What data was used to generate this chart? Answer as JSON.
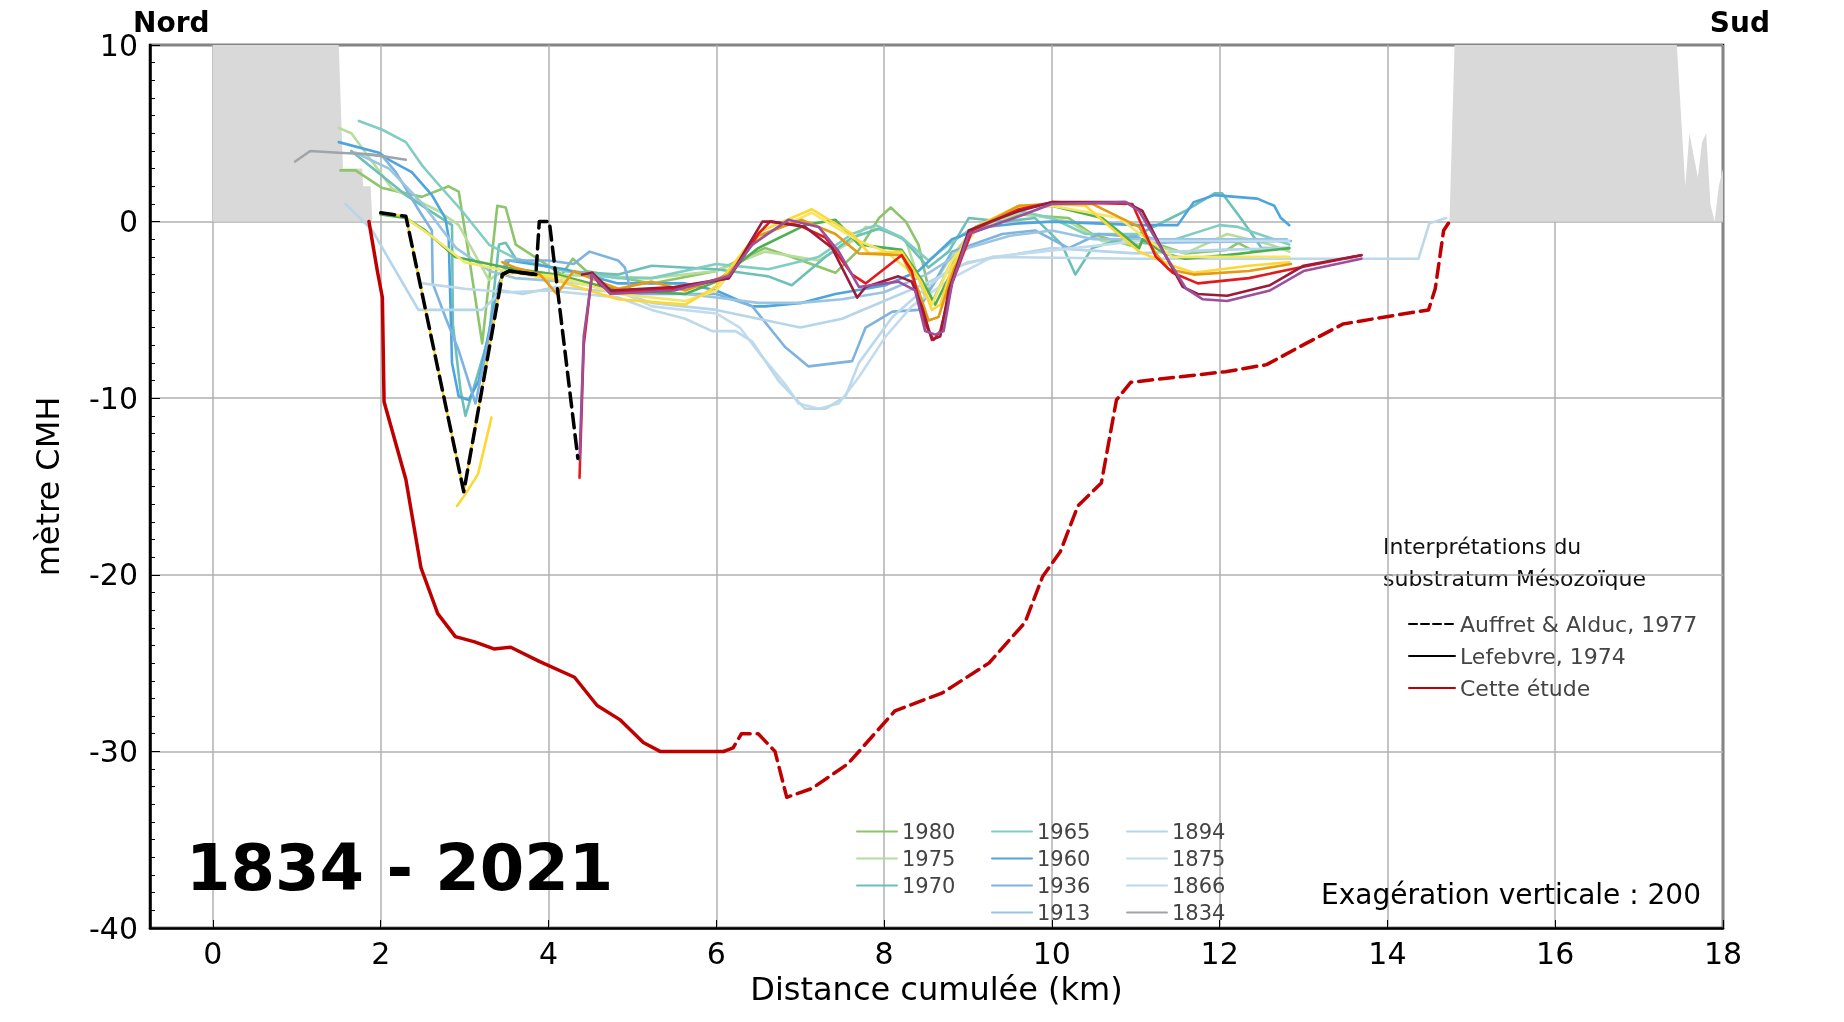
{
  "chart_data": {
    "type": "line",
    "xlabel": "Distance cumulée (km)",
    "ylabel": "mètre CMH",
    "legend_title": "Interprétations du substratum Mésozoïque",
    "annotations": [
      "Nord",
      "Sud",
      "1834 - 2021",
      "Exagération verticale : 200"
    ],
    "xlim": [
      -0.75,
      18
    ],
    "xticks": [
      0,
      2,
      4,
      6,
      8,
      10,
      12,
      14,
      16,
      18
    ],
    "ylim": [
      -40,
      10
    ],
    "yticks": [
      -40,
      -30,
      -20,
      -10,
      0,
      10
    ],
    "grid": true,
    "legend": "bottom right",
    "marker": "none",
    "series": [
      {
        "type": "area",
        "color": "#d9d9d9",
        "x": [
          0,
          1.5,
          1.55,
          1.78,
          1.79,
          1.88,
          1.9
        ],
        "values": [
          10,
          10,
          3,
          3,
          2,
          2,
          0
        ]
      },
      {
        "type": "area",
        "color": "#d9d9d9",
        "x": [
          14.74,
          14.8,
          17.45,
          17.55,
          17.6,
          17.7,
          17.75,
          17.8,
          17.85,
          17.9,
          17.95,
          18.0
        ],
        "values": [
          0,
          10,
          10,
          2,
          5,
          2.5,
          4.5,
          5,
          1,
          0,
          2,
          3
        ]
      },
      {
        "name": "1980",
        "color": "#8dc56b",
        "x": [
          1.52,
          1.7,
          2.02,
          2.49,
          2.81,
          2.93,
          3.03,
          3.21,
          3.39,
          3.49,
          3.61,
          4.16,
          4.29,
          4.45,
          5.23,
          6.0,
          6.58,
          6.9,
          7.42,
          7.7,
          7.94,
          8.08,
          8.26,
          8.41,
          8.57,
          8.77,
          9.05,
          9.61,
          10.2,
          10.48,
          11.04,
          11.08,
          11.59,
          12.09,
          12.22,
          12.38,
          12.83
        ],
        "values": [
          2.9,
          2.9,
          1.9,
          1.4,
          2.0,
          1.7,
          -1.3,
          -6.9,
          0.9,
          0.8,
          -1.3,
          -3.0,
          -2.1,
          -2.8,
          -3.5,
          -2.8,
          -1.5,
          -2.0,
          -2.9,
          -1.6,
          0.2,
          0.8,
          0.0,
          -1.3,
          -4.6,
          -2.6,
          -0.5,
          0.4,
          0.2,
          -0.7,
          -1.5,
          -1.0,
          -1.8,
          -1.6,
          -1.2,
          -1.6,
          -1.5
        ]
      },
      {
        "name": "1975",
        "color": "#b7dc9c",
        "x": [
          1.5,
          1.65,
          2.13,
          2.69,
          2.93,
          3.29,
          3.49,
          4.09,
          5.23,
          6.0,
          6.58,
          7.22,
          7.62,
          7.78,
          8.02,
          8.26,
          8.49,
          8.77,
          9.05,
          9.61,
          10.2,
          10.6,
          11.04,
          11.08,
          11.59,
          12.09,
          12.6,
          12.83
        ],
        "values": [
          5.3,
          5.0,
          1.9,
          0.6,
          -0.2,
          -3.3,
          -2.7,
          -3.0,
          -3.2,
          -2.8,
          -1.7,
          -2.2,
          -1.1,
          -0.3,
          -0.5,
          -1.1,
          -4.3,
          -2.2,
          -0.5,
          0.5,
          0.0,
          -1.1,
          -1.3,
          -1.2,
          -1.8,
          -0.7,
          -1.3,
          -1.7
        ]
      },
      {
        "name": "1970",
        "color": "#6cc0b8",
        "x": [
          1.65,
          2.3,
          2.85,
          2.86,
          2.95,
          3.01,
          3.29,
          3.41,
          3.49,
          3.61,
          4.2,
          4.83,
          5.23,
          6.0,
          6.62,
          6.9,
          7.3,
          7.62,
          7.94,
          8.21,
          8.53,
          8.77,
          9.01,
          9.41,
          9.8,
          10.12,
          10.28,
          10.48,
          11.04,
          11.59,
          11.94,
          12.03,
          12.25,
          12.5,
          12.83
        ],
        "values": [
          4.0,
          1.5,
          -0.2,
          -5.8,
          -9.5,
          -11.0,
          -6.5,
          -1.3,
          -1.2,
          -2.1,
          -2.8,
          -3.0,
          -2.5,
          -2.7,
          -3.1,
          -3.6,
          -2.0,
          -0.9,
          -0.4,
          -0.9,
          -2.6,
          -1.7,
          0.2,
          0.0,
          0.2,
          -1.3,
          -3.0,
          -1.5,
          -0.7,
          0.6,
          1.6,
          1.6,
          0.2,
          -1.5,
          -1.5
        ]
      },
      {
        "name": "1965",
        "color": "#80cdc1",
        "x": [
          1.74,
          2.02,
          2.3,
          2.49,
          2.69,
          2.97,
          3.29,
          3.61,
          4.2,
          4.83,
          5.23,
          6.0,
          6.62,
          7.22,
          7.62,
          7.9,
          8.21,
          8.53,
          8.77,
          9.01,
          9.61,
          10.0,
          10.4,
          11.04,
          11.34,
          12.0,
          12.22,
          12.83
        ],
        "values": [
          5.7,
          5.2,
          4.5,
          3.2,
          2.1,
          0.6,
          -1.3,
          -2.1,
          -2.8,
          -3.2,
          -3.2,
          -2.4,
          -2.7,
          -2.0,
          -0.7,
          -0.2,
          -0.9,
          -2.2,
          -1.3,
          -0.5,
          0.6,
          0.2,
          -0.7,
          -0.7,
          -1.2,
          -0.2,
          -0.3,
          -1.3
        ]
      },
      {
        "name": "1960",
        "color": "#4ea5dd",
        "x": [
          1.5,
          1.98,
          2.1,
          2.37,
          2.61,
          2.77,
          2.81,
          2.85,
          2.93,
          3.05,
          3.17,
          3.41,
          3.53,
          4.2,
          4.83,
          5.63,
          6.0,
          6.43,
          6.58,
          7.02,
          7.42,
          8.02,
          8.41,
          8.81,
          9.21,
          9.61,
          10.0,
          11.04,
          11.08,
          11.5,
          11.69,
          11.94,
          12.45,
          12.65,
          12.73,
          12.83
        ],
        "values": [
          4.5,
          3.9,
          3.5,
          2.8,
          1.5,
          0.2,
          -0.9,
          -8.0,
          -9.9,
          -10.1,
          -9.0,
          -3.5,
          -2.2,
          -2.7,
          -3.5,
          -3.5,
          -3.9,
          -4.8,
          -4.8,
          -4.6,
          -4.1,
          -3.6,
          -2.8,
          -1.0,
          -0.3,
          -0.1,
          0.0,
          -0.2,
          -0.2,
          -0.2,
          1.1,
          1.5,
          1.3,
          0.9,
          0.2,
          -0.2
        ]
      },
      {
        "name": "1936",
        "color": "#7fb3df",
        "x": [
          1.66,
          2.02,
          2.18,
          2.46,
          2.61,
          2.62,
          2.77,
          2.93,
          3.13,
          3.33,
          3.49,
          4.0,
          4.3,
          4.49,
          4.83,
          4.91,
          4.99,
          6.0,
          6.43,
          6.82,
          7.1,
          7.62,
          7.78,
          8.1,
          8.41,
          8.81,
          9.41,
          9.8,
          10.2,
          10.56,
          11.04,
          11.08,
          12.85
        ],
        "values": [
          3.9,
          3.7,
          2.8,
          0.6,
          -0.5,
          -3.5,
          -5.4,
          -7.3,
          -10.3,
          -5.6,
          -2.2,
          -2.2,
          -2.4,
          -1.7,
          -2.2,
          -2.6,
          -4.1,
          -4.1,
          -4.8,
          -7.1,
          -8.2,
          -7.9,
          -6.0,
          -5.1,
          -5.0,
          -1.7,
          -0.7,
          -0.5,
          -1.5,
          -0.7,
          -0.9,
          -1.2,
          -1.1
        ]
      },
      {
        "name": "1913",
        "color": "#99c5e3",
        "x": [
          1.7,
          2.1,
          2.5,
          2.9,
          3.3,
          3.6,
          4.2,
          4.83,
          5.23,
          5.63,
          6.0,
          6.5,
          7.0,
          7.5,
          8.0,
          8.5,
          9.0,
          9.5,
          10.0,
          10.5,
          11.0,
          12.0,
          12.8
        ],
        "values": [
          3.9,
          3.0,
          1.0,
          -1.5,
          -2.8,
          -3.2,
          -3.4,
          -3.8,
          -4.0,
          -4.1,
          -4.3,
          -4.6,
          -4.6,
          -4.4,
          -4.0,
          -3.0,
          -1.5,
          -0.8,
          -0.5,
          -1.0,
          -1.0,
          -1.0,
          -1.0
        ]
      },
      {
        "name": "1894",
        "color": "#b5d5ea",
        "x": [
          1.58,
          1.9,
          2.13,
          2.45,
          3.21,
          3.45,
          3.69,
          4.09,
          4.83,
          5.23,
          6.0,
          6.5,
          7.0,
          7.5,
          8.0,
          8.5,
          9.0,
          10.0,
          11.0,
          12.0,
          12.8
        ],
        "values": [
          1.0,
          -0.5,
          -2.4,
          -5.0,
          -5.0,
          -3.9,
          -4.1,
          -3.7,
          -4.0,
          -4.6,
          -5.0,
          -5.5,
          -6.0,
          -5.5,
          -4.5,
          -3.5,
          -2.3,
          -1.5,
          -1.8,
          -1.6,
          -1.5
        ]
      },
      {
        "name": "1875",
        "color": "#c2dcee",
        "x": [
          4.0,
          4.83,
          5.23,
          6.0,
          6.28,
          6.52,
          6.82,
          6.98,
          7.22,
          7.46,
          7.7,
          8.02,
          8.33,
          8.81,
          9.29,
          11.04,
          12.0,
          12.83
        ],
        "values": [
          -3.2,
          -3.9,
          -4.8,
          -5.2,
          -6.0,
          -7.5,
          -9.2,
          -10.3,
          -10.6,
          -10.3,
          -8.8,
          -6.5,
          -4.8,
          -3.2,
          -2.0,
          -1.1,
          -1.1,
          -1.1
        ]
      },
      {
        "name": "1866",
        "color": "#bcd9ea",
        "x": [
          2.5,
          3.0,
          3.5,
          4.0,
          4.83,
          5.23,
          5.63,
          5.95,
          6.23,
          6.43,
          6.74,
          7.06,
          7.3,
          7.54,
          7.7,
          8.1,
          8.41,
          8.81,
          9.29,
          11.04,
          12.0,
          13.0,
          14.37,
          14.5,
          14.7
        ],
        "values": [
          -3.5,
          -3.8,
          -4.0,
          -3.9,
          -4.3,
          -5.0,
          -5.5,
          -6.2,
          -6.2,
          -6.8,
          -9.0,
          -10.6,
          -10.6,
          -9.9,
          -8.0,
          -5.4,
          -4.1,
          -2.6,
          -2.0,
          -2.1,
          -2.1,
          -2.1,
          -2.1,
          -0.1,
          0.2
        ]
      },
      {
        "name": "1834",
        "color": "#a0a4a8",
        "x": [
          0.98,
          1.16,
          1.5,
          1.9,
          2.3
        ],
        "values": [
          3.4,
          4.0,
          3.9,
          3.8,
          3.5
        ]
      },
      {
        "color": "#4caf50",
        "x": [
          2.0,
          2.3,
          2.53,
          2.89,
          3.49,
          4.09,
          4.83,
          5.63,
          6.0,
          6.5,
          7.06,
          7.42,
          7.7,
          8.21,
          8.45,
          8.61,
          8.81,
          9.09,
          9.61,
          10.0,
          10.6,
          11.04,
          11.08,
          11.34,
          11.59,
          12.09,
          12.83
        ],
        "values": [
          0.4,
          0.2,
          -0.5,
          -2.0,
          -2.6,
          -3.0,
          -3.9,
          -4.1,
          -3.4,
          -1.5,
          -0.2,
          0.1,
          -1.3,
          -1.6,
          -3.3,
          -4.7,
          -2.8,
          -0.3,
          0.8,
          0.9,
          0.2,
          -1.5,
          -1.0,
          -1.8,
          -2.1,
          -1.9,
          -1.5
        ]
      },
      {
        "color": "#f5e663",
        "x": [
          2.3,
          2.6,
          3.0,
          3.5,
          4.1,
          4.83,
          5.63,
          6.0,
          6.5,
          7.14,
          7.7,
          8.02,
          8.41,
          8.57,
          8.81,
          9.13,
          9.61,
          10.0,
          10.8,
          11.08,
          11.44,
          12.0,
          12.83
        ],
        "values": [
          0.2,
          -0.8,
          -2.3,
          -2.8,
          -3.1,
          -4.1,
          -4.5,
          -3.9,
          -0.9,
          0.5,
          -1.1,
          -1.7,
          -3.2,
          -4.7,
          -2.2,
          -0.3,
          0.8,
          0.9,
          0.2,
          -0.8,
          -2.0,
          -2.0,
          -2.0
        ]
      },
      {
        "color": "#fdd835",
        "x": [
          2.91,
          3.0,
          3.16,
          3.32
        ],
        "values": [
          -16.1,
          -15.5,
          -14.3,
          -11.1
        ]
      },
      {
        "color": "#fdd835",
        "x": [
          2.0,
          2.3,
          2.99,
          3.45,
          3.6,
          4.0,
          4.83,
          5.63,
          5.99,
          6.5,
          7.14,
          7.62,
          7.82,
          8.21,
          8.45,
          8.57,
          8.67,
          8.81,
          9.09,
          9.61,
          10.0,
          10.4,
          11.04,
          11.44,
          11.69,
          12.35,
          12.83
        ],
        "values": [
          0.5,
          0.3,
          -15.3,
          -3.0,
          -2.9,
          -3.2,
          -4.4,
          -4.7,
          -3.7,
          -0.6,
          0.7,
          -0.7,
          -1.8,
          -1.7,
          -3.5,
          -5.0,
          -4.7,
          -2.6,
          -0.3,
          0.9,
          1.0,
          0.9,
          -1.7,
          -2.5,
          -2.9,
          -2.5,
          -2.3
        ]
      },
      {
        "color": "#e69a12",
        "x": [
          3.45,
          3.6,
          3.9,
          4.1,
          4.3,
          4.5,
          4.83,
          5.23,
          5.63,
          6.15,
          6.5,
          7.02,
          7.42,
          7.7,
          8.21,
          8.41,
          8.53,
          8.65,
          8.81,
          9.05,
          9.61,
          10.0,
          10.48,
          11.04,
          11.24,
          11.39,
          11.69,
          12.35,
          12.85
        ],
        "values": [
          -2.3,
          -2.6,
          -3.0,
          -4.1,
          -2.8,
          -3.2,
          -3.8,
          -3.4,
          -3.9,
          -3.0,
          -0.8,
          0.1,
          -0.7,
          -1.8,
          -1.9,
          -3.9,
          -5.6,
          -5.4,
          -3.0,
          -0.5,
          0.9,
          1.0,
          1.0,
          -0.3,
          -1.8,
          -2.7,
          -3.0,
          -2.8,
          -2.4
        ]
      },
      {
        "color": "#e31a1c",
        "x": [
          4.37,
          4.42,
          4.52,
          4.6,
          4.74,
          5.5,
          6.15,
          6.5,
          6.64,
          6.98,
          7.3,
          7.62,
          7.78,
          8.21,
          8.33,
          8.49,
          8.59,
          8.67,
          8.81,
          9.05,
          9.61,
          10.0,
          10.96,
          11.24,
          11.44,
          11.74,
          12.35,
          12.85,
          13.69
        ],
        "values": [
          -14.5,
          -7.0,
          -2.9,
          -3.5,
          -4.0,
          -3.8,
          -3.2,
          -0.7,
          0.0,
          -0.2,
          -0.9,
          -3.0,
          -3.5,
          -1.9,
          -2.8,
          -5.8,
          -6.7,
          -6.2,
          -3.5,
          -0.5,
          0.7,
          1.1,
          1.0,
          -2.0,
          -2.9,
          -3.5,
          -3.2,
          -2.7,
          -1.9
        ]
      },
      {
        "color": "#9e1a3a",
        "x": [
          4.4,
          4.52,
          4.74,
          5.5,
          6.15,
          6.55,
          6.66,
          7.06,
          7.38,
          7.68,
          7.78,
          8.17,
          8.33,
          8.45,
          8.57,
          8.67,
          8.77,
          9.01,
          9.21,
          9.61,
          10.0,
          10.88,
          11.08,
          11.34,
          11.56,
          11.74,
          12.09,
          12.6,
          13.0,
          13.69
        ],
        "values": [
          -3.0,
          -2.9,
          -3.9,
          -3.7,
          -3.2,
          0.0,
          0.0,
          -0.3,
          -1.5,
          -4.3,
          -3.7,
          -3.1,
          -3.4,
          -4.8,
          -6.7,
          -6.5,
          -3.9,
          -0.5,
          -0.1,
          0.6,
          1.1,
          1.1,
          0.6,
          -1.8,
          -3.7,
          -4.1,
          -4.2,
          -3.6,
          -2.5,
          -1.9
        ]
      },
      {
        "color": "#9c4f9c",
        "x": [
          4.37,
          4.42,
          4.52,
          4.74,
          5.5,
          6.15,
          6.43,
          6.86,
          7.22,
          7.46,
          7.7,
          8.17,
          8.37,
          8.49,
          8.61,
          8.71,
          8.81,
          9.01,
          9.61,
          10.0,
          10.88,
          11.04,
          11.34,
          11.6,
          11.8,
          12.09,
          12.6,
          13.0,
          13.69
        ],
        "values": [
          -13.5,
          -6.5,
          -3.0,
          -4.1,
          -3.9,
          -3.1,
          -1.3,
          0.1,
          -0.3,
          -1.7,
          -3.7,
          -3.4,
          -3.9,
          -6.2,
          -6.4,
          -6.2,
          -3.5,
          -0.7,
          0.3,
          1.0,
          1.1,
          0.6,
          -1.8,
          -3.8,
          -4.4,
          -4.5,
          -3.9,
          -2.8,
          -2.1
        ]
      },
      {
        "name": "Auffret & Alduc, 1977",
        "color": "#000000",
        "line_style": "dashed",
        "x": [
          2.0,
          2.3,
          2.99,
          3.45,
          3.53,
          3.85,
          3.89,
          4.01,
          4.35
        ],
        "values": [
          0.5,
          0.3,
          -15.3,
          -3.0,
          -2.8,
          -3.0,
          0.0,
          0.0,
          -13.4
        ]
      },
      {
        "name": "Lefebvre, 1974",
        "color": "#000000",
        "line_style": "solid",
        "x": [
          3.45,
          3.53,
          3.85
        ],
        "values": [
          -3.0,
          -2.8,
          -3.0
        ]
      },
      {
        "name": "Cette étude",
        "color": "#c00000",
        "line_style": "solid",
        "x": [
          1.86,
          1.96,
          2.02,
          2.04,
          2.3,
          2.48,
          2.68,
          2.89,
          3.12,
          3.35,
          3.55,
          3.89,
          4.31,
          4.58,
          4.85,
          5.13,
          5.33,
          6.09
        ],
        "values": [
          0.0,
          -2.8,
          -4.3,
          -10.2,
          -14.6,
          -19.6,
          -22.2,
          -23.5,
          -23.8,
          -24.2,
          -24.1,
          -24.9,
          -25.8,
          -27.4,
          -28.2,
          -29.5,
          -30.0,
          -30.0
        ]
      },
      {
        "color": "#c00000",
        "line_style": "dashed",
        "x": [
          6.09,
          6.2,
          6.3,
          6.5,
          6.7,
          6.84,
          7.14,
          7.57,
          8.13,
          8.69,
          9.25,
          9.68,
          9.89,
          10.1,
          10.31,
          10.59,
          10.77,
          10.94,
          11.5,
          12.07,
          12.56,
          12.91,
          13.47,
          13.97,
          14.49,
          14.57,
          14.67,
          14.74
        ],
        "values": [
          -30.0,
          -29.8,
          -29.0,
          -29.0,
          -30.0,
          -32.6,
          -32.1,
          -30.7,
          -27.7,
          -26.7,
          -25.0,
          -22.7,
          -20.1,
          -18.7,
          -16.1,
          -14.8,
          -10.1,
          -9.1,
          -8.8,
          -8.5,
          -8.1,
          -7.2,
          -5.8,
          -5.4,
          -5.0,
          -3.8,
          -0.5,
          0.0
        ]
      }
    ]
  }
}
